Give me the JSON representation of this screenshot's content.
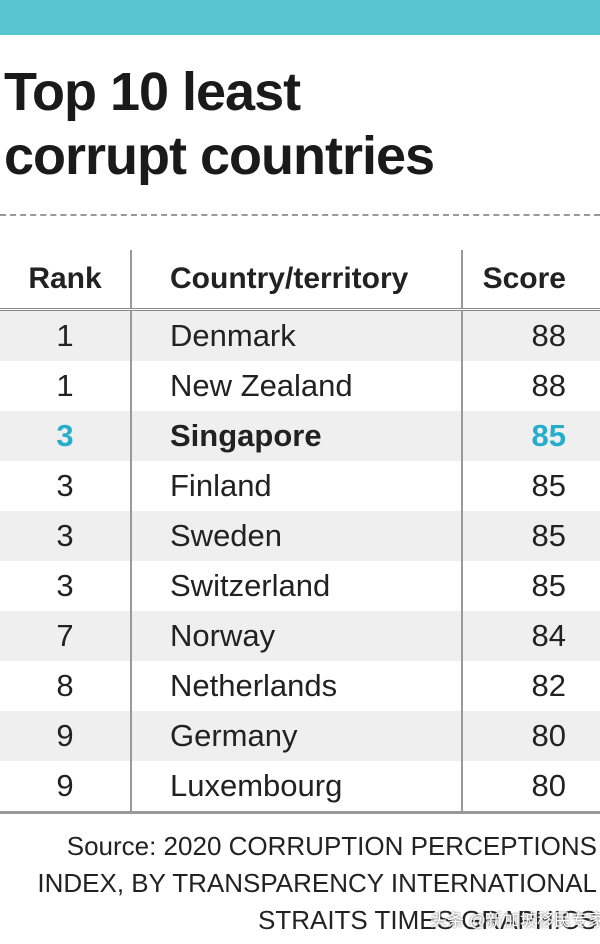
{
  "header": {
    "title_lines": [
      "Top 10 least",
      "corrupt countries"
    ]
  },
  "table": {
    "columns": [
      "Rank",
      "Country/territory",
      "Score"
    ],
    "rows": [
      [
        1,
        "Denmark",
        88
      ],
      [
        1,
        "New Zealand",
        88
      ],
      [
        3,
        "Singapore",
        85
      ],
      [
        3,
        "Finland",
        85
      ],
      [
        3,
        "Sweden",
        85
      ],
      [
        3,
        "Switzerland",
        85
      ],
      [
        7,
        "Norway",
        84
      ],
      [
        8,
        "Netherlands",
        82
      ],
      [
        9,
        "Germany",
        80
      ],
      [
        9,
        "Luxembourg",
        80
      ]
    ]
  },
  "footer": {
    "source_lines": [
      "Source: 2020 CORRUPTION PERCEPTIONS",
      "INDEX, BY TRANSPARENCY INTERNATIONAL",
      "STRAITS TIMES GRAPHICS"
    ],
    "watermark": "头条 @新加坡移民专家"
  }
}
